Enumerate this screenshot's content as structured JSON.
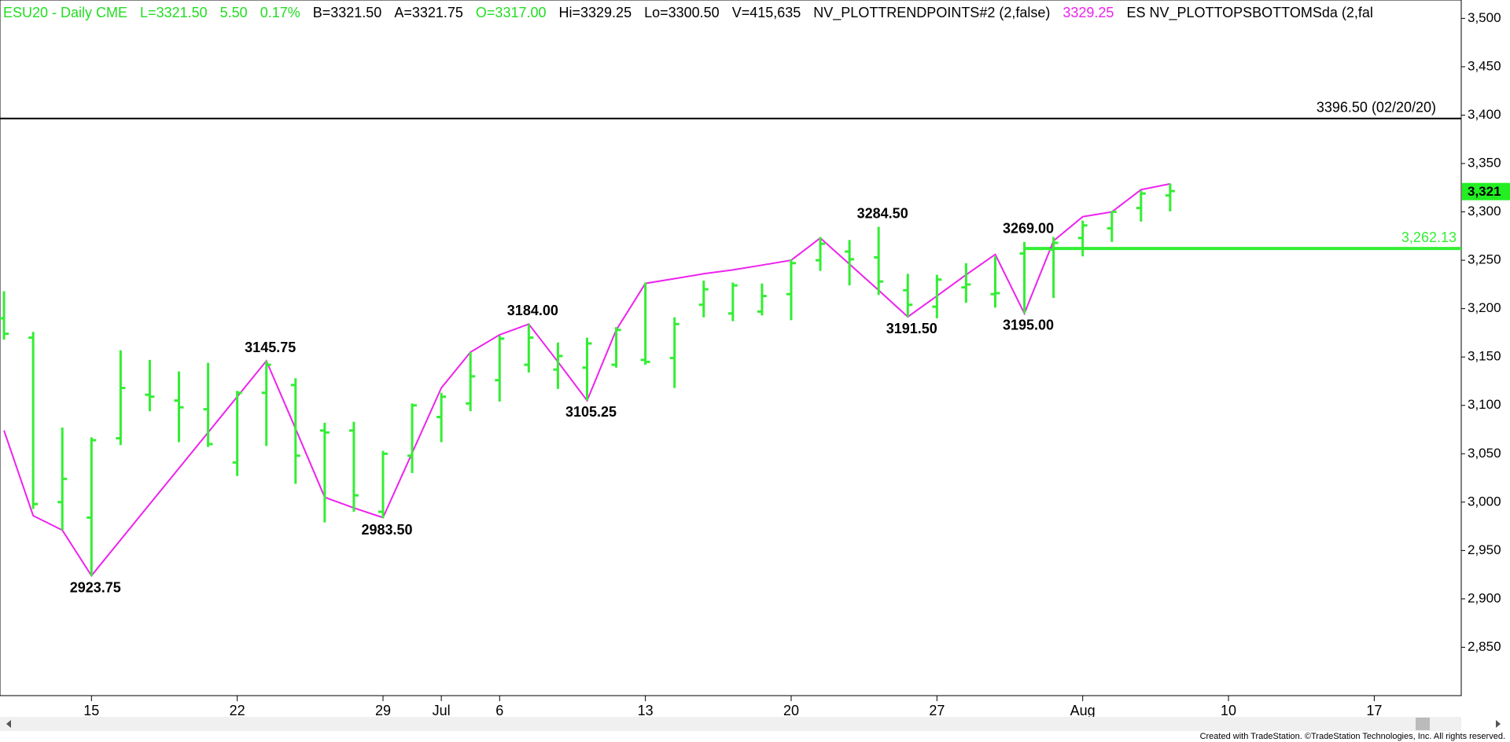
{
  "chart_data": {
    "type": "ohlc",
    "header": [
      {
        "text": "ESU20 - Daily  CME",
        "color": "#22dd22"
      },
      {
        "text": "L=3321.50",
        "color": "#22dd22"
      },
      {
        "text": "5.50",
        "color": "#22dd22"
      },
      {
        "text": "0.17%",
        "color": "#22dd22"
      },
      {
        "text": "B=3321.50",
        "color": "#000000"
      },
      {
        "text": "A=3321.75",
        "color": "#000000"
      },
      {
        "text": "O=3317.00",
        "color": "#22dd22"
      },
      {
        "text": "Hi=3329.25",
        "color": "#000000"
      },
      {
        "text": "Lo=3300.50",
        "color": "#000000"
      },
      {
        "text": "V=415,635",
        "color": "#000000"
      },
      {
        "text": "NV_PLOTTRENDPOINTS#2 (2,false)",
        "color": "#000000"
      },
      {
        "text": "3329.25",
        "color": "#ee22ee"
      },
      {
        "text": "ES NV_PLOTTOPSBOTTOMSda (2,fal",
        "color": "#000000"
      }
    ],
    "categories": [
      null,
      null,
      null,
      "15",
      null,
      null,
      null,
      null,
      "22",
      null,
      null,
      null,
      null,
      "29",
      null,
      "Jul",
      null,
      "6",
      null,
      null,
      null,
      null,
      "13",
      null,
      null,
      null,
      null,
      "20",
      null,
      null,
      null,
      null,
      "27",
      null,
      null,
      null,
      null,
      "Aug",
      null,
      null,
      null,
      null,
      "10",
      null,
      null,
      null,
      null,
      "17",
      null,
      null,
      null
    ],
    "color": "#33ee33",
    "open": [
      3190,
      3170,
      3000,
      2984,
      3066,
      3111,
      3105,
      3096,
      3041,
      3113,
      3121,
      3074,
      3074,
      2990,
      3048,
      3088,
      3102,
      3126,
      3142,
      3137,
      3139,
      3142,
      3147,
      3149,
      3204,
      3195,
      3197,
      3215,
      3250,
      3259,
      3253,
      3219,
      3202,
      3222,
      3215,
      3257,
      3261,
      3273,
      3283,
      3304,
      3317,
      null,
      null,
      null,
      null,
      null,
      null,
      null,
      null,
      null,
      null
    ],
    "high": [
      3218,
      3176,
      3077,
      3067,
      3157,
      3147,
      3135,
      3144,
      3115,
      3145.75,
      3128,
      3082,
      3083,
      3053,
      3102,
      3113,
      3155,
      3172,
      3184,
      3165,
      3170,
      3181,
      3227,
      3191,
      3229,
      3227,
      3226,
      3251,
      3274,
      3271,
      3284.5,
      3236,
      3235,
      3247,
      3254,
      3269,
      3274,
      3291,
      3300,
      3322,
      3329.25,
      null,
      null,
      null,
      null,
      null,
      null,
      null,
      null,
      null,
      null
    ],
    "low": [
      3168,
      2993,
      2971,
      2923.75,
      3059,
      3094,
      3062,
      3057,
      3027,
      3058,
      3019,
      2979,
      2990,
      2983.5,
      3030,
      3062,
      3094,
      3104,
      3134,
      3117,
      3105.25,
      3139,
      3142,
      3118,
      3191,
      3187,
      3193,
      3188,
      3239,
      3224,
      3214,
      3191.5,
      3190,
      3206,
      3201,
      3195,
      3211,
      3254,
      3269,
      3290,
      3300.5,
      null,
      null,
      null,
      null,
      null,
      null,
      null,
      null,
      null,
      null
    ],
    "close": [
      3174,
      2998,
      3024,
      3064,
      3118,
      3109,
      3098,
      3060,
      3113,
      3142,
      3048,
      3072,
      3007,
      3050,
      3100,
      3109,
      3130,
      3169,
      3170,
      3151,
      3164,
      3178,
      3145,
      3184,
      3220,
      3224,
      3213,
      3247,
      3267,
      3251,
      3228,
      3204,
      3230,
      3225,
      3216,
      3262,
      3268,
      3286,
      3300,
      3319,
      3321.5,
      null,
      null,
      null,
      null,
      null,
      null,
      null,
      null,
      null,
      null
    ],
    "trend": {
      "color": "#ee22ee",
      "values": [
        3074,
        2986,
        2971,
        2924,
        2961,
        2998,
        3035,
        3072,
        3109,
        3146,
        3076,
        3005,
        2994,
        2984,
        3051,
        3118,
        3155,
        3173,
        3184,
        3145,
        3105,
        3178,
        3226,
        3231,
        3236,
        3240,
        3245,
        3250,
        3273,
        3246,
        3219,
        3191.5,
        3213,
        3235,
        3256,
        3195,
        3270,
        3295,
        3300,
        3323,
        3329,
        null,
        null,
        null,
        null,
        null,
        null,
        null,
        null,
        null,
        null
      ]
    },
    "annotations": [
      {
        "value": 2923.75,
        "label": "2923.75",
        "position": "below"
      },
      {
        "value": 3145.75,
        "label": "3145.75",
        "position": "above"
      },
      {
        "value": 2983.5,
        "label": "2983.50",
        "position": "below"
      },
      {
        "value": 3184,
        "label": "3184.00",
        "position": "above"
      },
      {
        "value": 3105.25,
        "label": "3105.25",
        "position": "below"
      },
      {
        "value": 3284.5,
        "label": "3284.50",
        "position": "above"
      },
      {
        "value": 3191.5,
        "label": "3191.50",
        "position": "below"
      },
      {
        "value": 3269,
        "label": "3269.00",
        "position": "above"
      },
      {
        "value": 3195,
        "label": "3195.00",
        "position": "below"
      }
    ],
    "reference_lines": [
      {
        "value": 3396.5,
        "label": "3396.50 (02/20/20)",
        "color": "#000000"
      },
      {
        "value": 3262.13,
        "label": "3,262.13",
        "color": "#33ee33"
      }
    ],
    "last_price": {
      "value": 3321,
      "label": "3,321",
      "color": "#22ee22"
    },
    "ylim": [
      2800,
      3519
    ],
    "yticks": [
      {
        "value": 2850,
        "label": "2,850"
      },
      {
        "value": 2900,
        "label": "2,900"
      },
      {
        "value": 2950,
        "label": "2,950"
      },
      {
        "value": 3000,
        "label": "3,000"
      },
      {
        "value": 3050,
        "label": "3,050"
      },
      {
        "value": 3100,
        "label": "3,100"
      },
      {
        "value": 3150,
        "label": "3,150"
      },
      {
        "value": 3200,
        "label": "3,200"
      },
      {
        "value": 3250,
        "label": "3,250"
      },
      {
        "value": 3300,
        "label": "3,300"
      },
      {
        "value": 3350,
        "label": "3,350"
      },
      {
        "value": 3400,
        "label": "3,400"
      },
      {
        "value": 3450,
        "label": "3,450"
      },
      {
        "value": 3500,
        "label": "3,500"
      }
    ],
    "footer": "Created with TradeStation. ©TradeStation Technologies, Inc. All rights reserved."
  }
}
